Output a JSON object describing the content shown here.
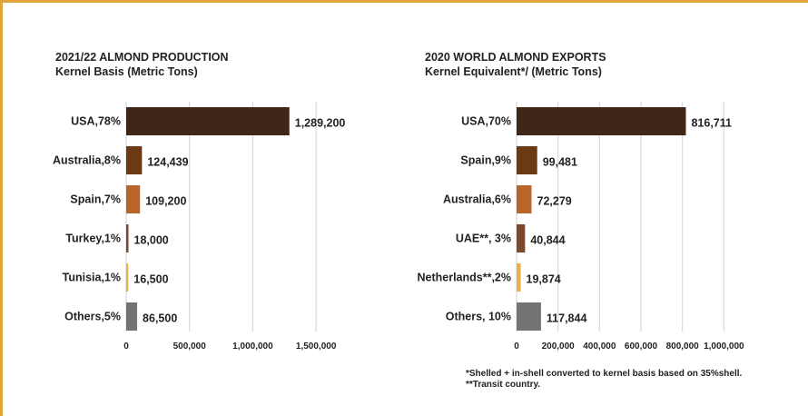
{
  "colors": {
    "border": "#e0a43a",
    "grid": "#d9d9d9",
    "text": "#222222"
  },
  "chart_data": [
    {
      "type": "bar",
      "orientation": "horizontal",
      "title": "2021/22 ALMOND PRODUCTION",
      "subtitle": "Kernel Basis (Metric Tons)",
      "categories": [
        "USA,78%",
        "Australia,8%",
        "Spain,7%",
        "Turkey,1%",
        "Tunisia,1%",
        "Others,5%"
      ],
      "values": [
        1289200,
        124439,
        109200,
        18000,
        16500,
        86500
      ],
      "value_labels": [
        "1,289,200",
        "124,439",
        "109,200",
        "18,000",
        "16,500",
        "86,500"
      ],
      "bar_colors": [
        "#3f2616",
        "#6b3a14",
        "#b8642a",
        "#7a4a2a",
        "#e8b04a",
        "#737373"
      ],
      "xlim": [
        0,
        1750000
      ],
      "xticks": [
        0,
        500000,
        1000000,
        1500000
      ],
      "xtick_labels": [
        "0",
        "500,000",
        "1,000,000",
        "1,500,000"
      ],
      "grid": true
    },
    {
      "type": "bar",
      "orientation": "horizontal",
      "title": "2020 WORLD ALMOND EXPORTS",
      "subtitle": "Kernel Equivalent*/ (Metric Tons)",
      "categories": [
        "USA,70%",
        "Spain,9%",
        "Australia,6%",
        "UAE**, 3%",
        "Netherlands**,2%",
        "Others, 10%"
      ],
      "values": [
        816711,
        99481,
        72279,
        40844,
        19874,
        117844
      ],
      "value_labels": [
        "816,711",
        "99,481",
        "72,279",
        "40,844",
        "19,874",
        "117,844"
      ],
      "bar_colors": [
        "#3f2616",
        "#6b3a14",
        "#b8642a",
        "#7a4a2a",
        "#e8b04a",
        "#737373"
      ],
      "xlim": [
        0,
        1200000
      ],
      "xticks": [
        0,
        200000,
        400000,
        600000,
        800000,
        1000000
      ],
      "xtick_labels": [
        "0",
        "200,000",
        "400,000",
        "600,000",
        "800,000",
        "1,000,000"
      ],
      "grid": true
    }
  ],
  "footnotes": [
    "*Shelled + in-shell converted to kernel basis based on 35%shell.",
    "**Transit country."
  ]
}
